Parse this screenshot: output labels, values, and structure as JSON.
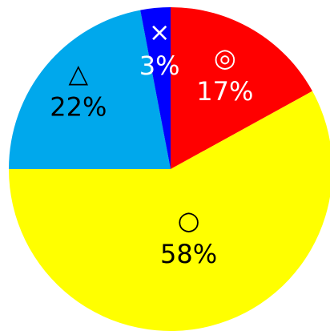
{
  "chart_data": {
    "type": "pie",
    "categories": [
      "◎",
      "○",
      "△",
      "×"
    ],
    "values": [
      17,
      58,
      22,
      3
    ],
    "value_labels": [
      "17%",
      "58%",
      "22%",
      "3%"
    ],
    "colors": [
      "#ff0000",
      "#ffff00",
      "#00a8ec",
      "#0000ff"
    ],
    "label_colors": [
      "#ffffff",
      "#000000",
      "#000000",
      "#ffffff"
    ]
  }
}
